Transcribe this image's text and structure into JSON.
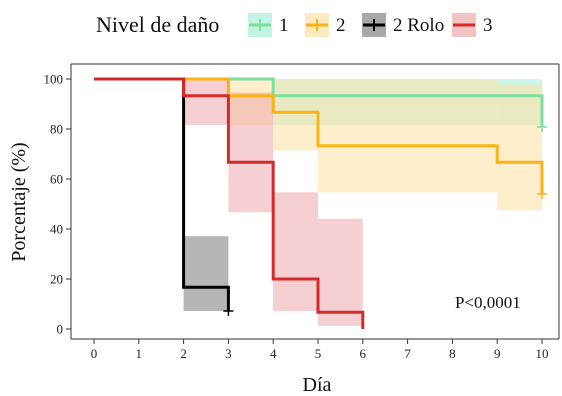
{
  "chart_data": {
    "type": "line",
    "subtype": "kaplan-meier step with confidence bands",
    "xlabel": "Día",
    "ylabel": "Porcentaje (%)",
    "xlim": [
      0,
      10
    ],
    "ylim": [
      0,
      100
    ],
    "x_ticks": [
      "0",
      "1",
      "2",
      "3",
      "4",
      "5",
      "6",
      "7",
      "8",
      "9",
      "10"
    ],
    "y_ticks": [
      "0",
      "20",
      "40",
      "60",
      "80",
      "100"
    ],
    "grid": false,
    "legend": {
      "title": "Nivel de daño",
      "placement": "top",
      "entries": [
        "1",
        "2",
        "2 Rolo",
        "3"
      ]
    },
    "annotation": "P<0,0001",
    "series": [
      {
        "name": "1",
        "color": "#7ee0a0",
        "band_color": "#aef0d8",
        "steps": [
          [
            0,
            100
          ],
          [
            4,
            100
          ],
          [
            4,
            93.3
          ],
          [
            10,
            93.3
          ],
          [
            10,
            80.8
          ]
        ],
        "band": [
          [
            0,
            100,
            100
          ],
          [
            4,
            100,
            81.6
          ],
          [
            9,
            100,
            81.6
          ],
          [
            10,
            93.3,
            81.6
          ]
        ],
        "censor": [
          [
            10,
            80.8
          ]
        ]
      },
      {
        "name": "2",
        "color": "#f6b417",
        "band_color": "#fde3a8",
        "steps": [
          [
            0,
            100
          ],
          [
            3,
            100
          ],
          [
            3,
            93.3
          ],
          [
            4,
            93.3
          ],
          [
            4,
            86.7
          ],
          [
            5,
            86.7
          ],
          [
            5,
            73.3
          ],
          [
            9,
            73.3
          ],
          [
            9,
            66.7
          ],
          [
            10,
            66.7
          ],
          [
            10,
            54
          ]
        ],
        "band": [
          [
            0,
            100,
            100
          ],
          [
            3,
            100,
            81.6
          ],
          [
            4,
            100,
            71.4
          ],
          [
            5,
            100,
            54.6
          ],
          [
            9,
            97.7,
            47.5
          ],
          [
            10,
            97.7,
            47.5
          ]
        ],
        "censor": [
          [
            10,
            54
          ]
        ]
      },
      {
        "name": "2 Rolo",
        "color": "#000000",
        "band_color": "#9e9e9e",
        "steps": [
          [
            0,
            100
          ],
          [
            2,
            100
          ],
          [
            2,
            16.7
          ],
          [
            3,
            16.7
          ],
          [
            3,
            7.2
          ]
        ],
        "band": [
          [
            2,
            37.1,
            7.2
          ],
          [
            3,
            37.1,
            7.2
          ]
        ],
        "censor": [
          [
            3,
            7.2
          ]
        ]
      },
      {
        "name": "3",
        "color": "#d42a2a",
        "band_color": "#efafb2",
        "steps": [
          [
            0,
            100
          ],
          [
            2,
            100
          ],
          [
            2,
            93.3
          ],
          [
            3,
            93.3
          ],
          [
            3,
            66.7
          ],
          [
            4,
            66.7
          ],
          [
            4,
            20
          ],
          [
            5,
            20
          ],
          [
            5,
            6.7
          ],
          [
            6,
            6.7
          ],
          [
            6,
            0
          ]
        ],
        "band": [
          [
            2,
            100,
            81.6
          ],
          [
            3,
            94.6,
            46.7
          ],
          [
            4,
            54.7,
            7.2
          ],
          [
            5,
            44.1,
            1.3
          ],
          [
            6,
            44.1,
            1.3
          ]
        ],
        "censor": []
      }
    ]
  }
}
